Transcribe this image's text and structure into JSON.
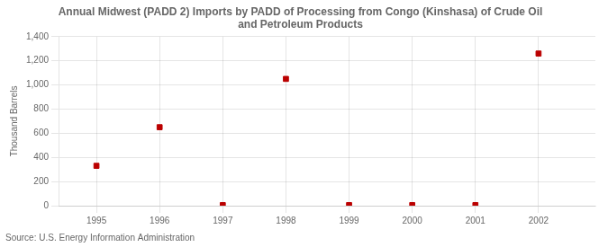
{
  "chart_data": {
    "type": "scatter",
    "title": "Annual Midwest (PADD 2) Imports by PADD of Processing from Congo (Kinshasa) of Crude Oil\nand Petroleum Products",
    "ylabel": "Thousand Barrels",
    "annotations": [
      "Source: U.S. Energy Information Administration"
    ],
    "x": [
      1995,
      1996,
      1997,
      1998,
      1999,
      2000,
      2001,
      2002
    ],
    "values": [
      330,
      650,
      5,
      1050,
      5,
      5,
      5,
      1260
    ],
    "color": "#bb0000",
    "marker": "square",
    "xlim": [
      1994.4,
      2002.9
    ],
    "ylim": [
      0,
      1400
    ],
    "xticks": [
      1995,
      1996,
      1997,
      1998,
      1999,
      2000,
      2001,
      2002
    ],
    "yticks": [
      0,
      200,
      400,
      600,
      800,
      {
        "value": 1000,
        "label": "1,000"
      },
      {
        "value": 1200,
        "label": "1,200"
      },
      {
        "value": 1400,
        "label": "1,400"
      }
    ],
    "grid": true
  }
}
